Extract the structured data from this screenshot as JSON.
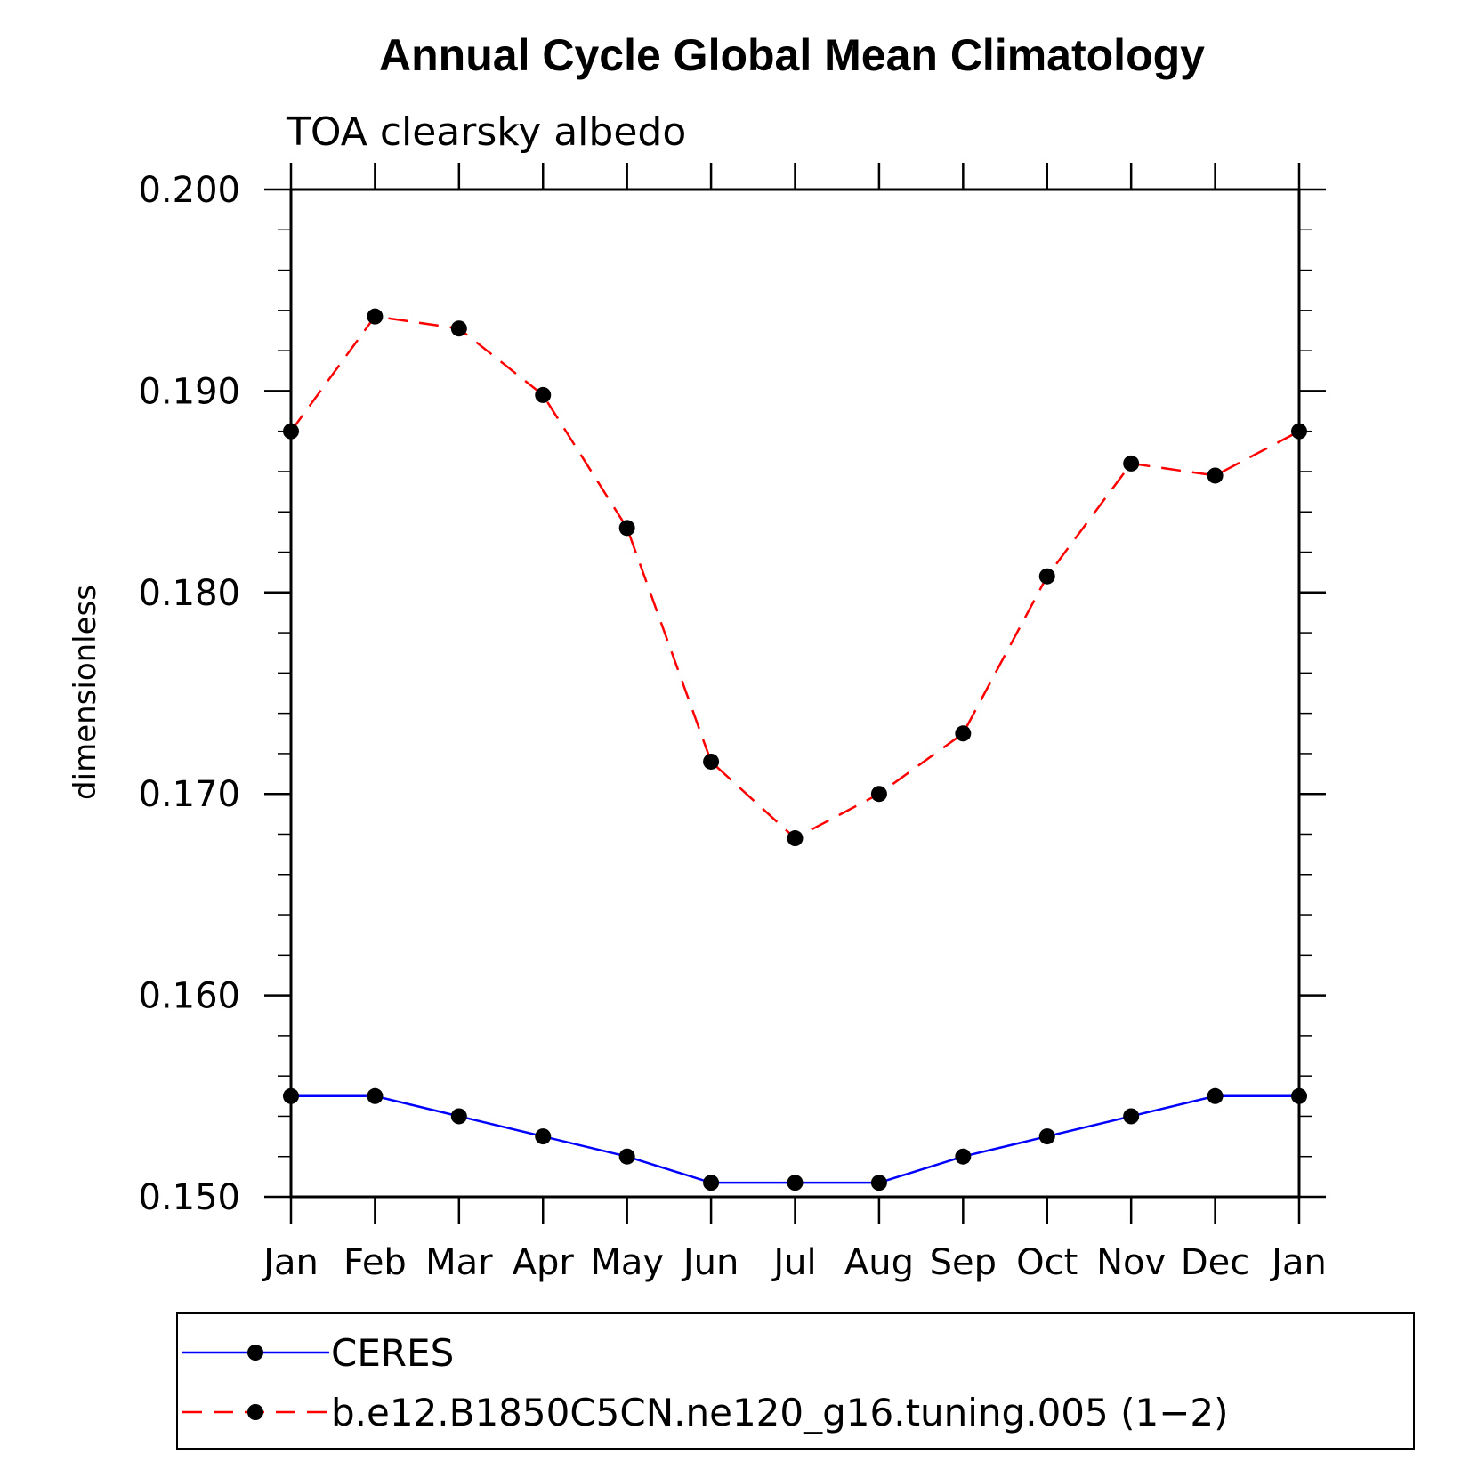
{
  "chart_data": {
    "type": "line",
    "title": "Annual Cycle Global Mean Climatology",
    "subtitle": "TOA clearsky albedo",
    "xlabel": "",
    "ylabel": "dimensionless",
    "categories": [
      "Jan",
      "Feb",
      "Mar",
      "Apr",
      "May",
      "Jun",
      "Jul",
      "Aug",
      "Sep",
      "Oct",
      "Nov",
      "Dec",
      "Jan"
    ],
    "ylim": [
      0.15,
      0.2
    ],
    "yticks": [
      "0.150",
      "0.160",
      "0.170",
      "0.180",
      "0.190",
      "0.200"
    ],
    "grid": false,
    "legend_position": "bottom",
    "series": [
      {
        "name": "CERES",
        "color": "#0000ff",
        "style": "solid",
        "marker": "filled-circle",
        "values": [
          0.155,
          0.155,
          0.154,
          0.153,
          0.152,
          0.1507,
          0.1507,
          0.1507,
          0.152,
          0.153,
          0.154,
          0.155,
          0.155
        ]
      },
      {
        "name": "b.e12.B1850C5CN.ne120_g16.tuning.005 (1−2)",
        "color": "#ff0000",
        "style": "dashed",
        "marker": "filled-circle",
        "values": [
          0.188,
          0.1937,
          0.1931,
          0.1898,
          0.1832,
          0.1716,
          0.1678,
          0.17,
          0.173,
          0.1808,
          0.1864,
          0.1858,
          0.188
        ]
      }
    ]
  }
}
